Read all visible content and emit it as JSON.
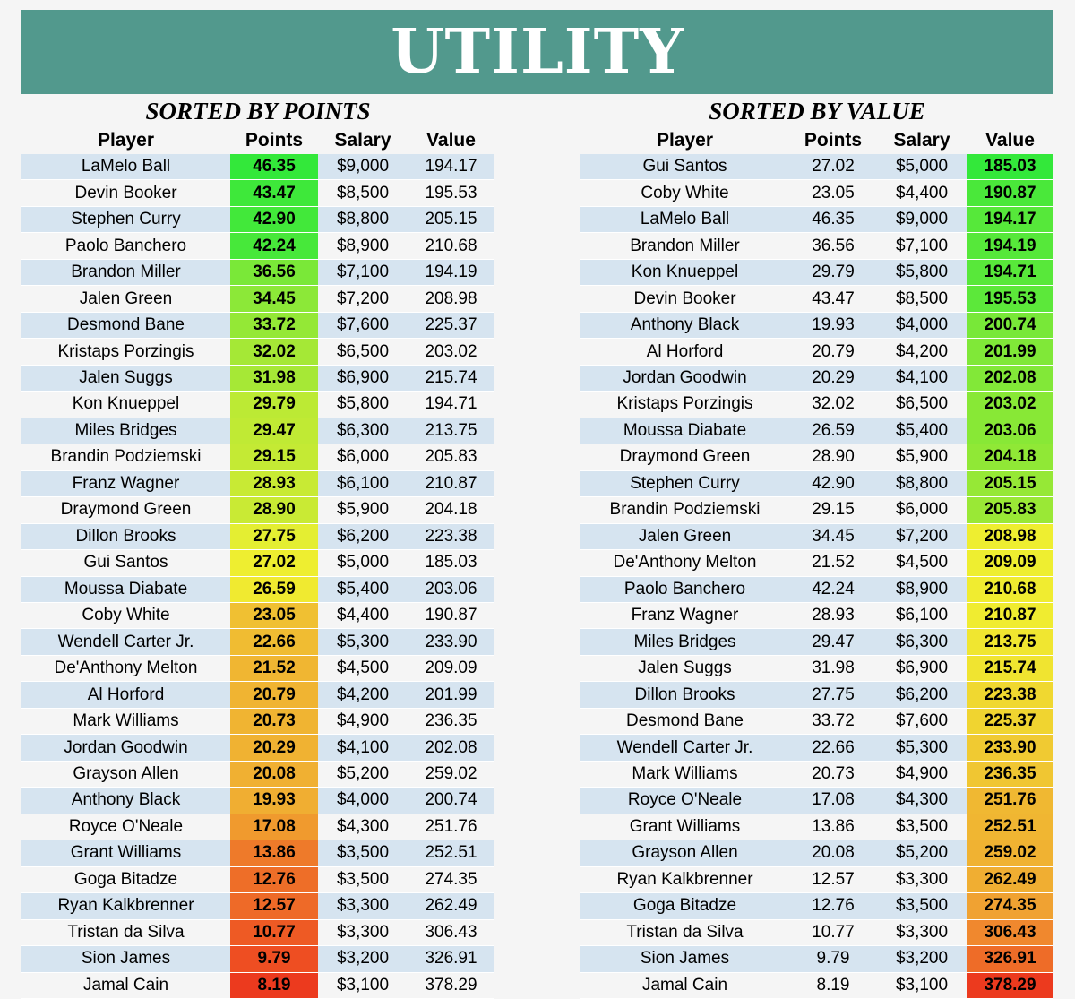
{
  "title": "UTILITY",
  "left": {
    "subtitle": "SORTED BY POINTS",
    "headers": [
      "Player",
      "Points",
      "Salary",
      "Value"
    ],
    "rows": [
      {
        "player": "LaMelo Ball",
        "points": "46.35",
        "salary": "$9,000",
        "value": "194.17",
        "heat": "#33e83a"
      },
      {
        "player": "Devin Booker",
        "points": "43.47",
        "salary": "$8,500",
        "value": "195.53",
        "heat": "#3ee83a"
      },
      {
        "player": "Stephen Curry",
        "points": "42.90",
        "salary": "$8,800",
        "value": "205.15",
        "heat": "#42e83a"
      },
      {
        "player": "Paolo Banchero",
        "points": "42.24",
        "salary": "$8,900",
        "value": "210.68",
        "heat": "#47e83a"
      },
      {
        "player": "Brandon Miller",
        "points": "36.56",
        "salary": "$7,100",
        "value": "194.19",
        "heat": "#7ae838"
      },
      {
        "player": "Jalen Green",
        "points": "34.45",
        "salary": "$7,200",
        "value": "208.98",
        "heat": "#8ce838"
      },
      {
        "player": "Desmond Bane",
        "points": "33.72",
        "salary": "$7,600",
        "value": "225.37",
        "heat": "#94e836"
      },
      {
        "player": "Kristaps Porzingis",
        "points": "32.02",
        "salary": "$6,500",
        "value": "203.02",
        "heat": "#a5e836"
      },
      {
        "player": "Jalen Suggs",
        "points": "31.98",
        "salary": "$6,900",
        "value": "215.74",
        "heat": "#a6e836"
      },
      {
        "player": "Kon Knueppel",
        "points": "29.79",
        "salary": "$5,800",
        "value": "194.71",
        "heat": "#bcea34"
      },
      {
        "player": "Miles Bridges",
        "points": "29.47",
        "salary": "$6,300",
        "value": "213.75",
        "heat": "#c0ea34"
      },
      {
        "player": "Brandin Podziemski",
        "points": "29.15",
        "salary": "$6,000",
        "value": "205.83",
        "heat": "#c4ea34"
      },
      {
        "player": "Franz Wagner",
        "points": "28.93",
        "salary": "$6,100",
        "value": "210.87",
        "heat": "#c8ea34"
      },
      {
        "player": "Draymond Green",
        "points": "28.90",
        "salary": "$5,900",
        "value": "204.18",
        "heat": "#c9ea34"
      },
      {
        "player": "Dillon Brooks",
        "points": "27.75",
        "salary": "$6,200",
        "value": "223.38",
        "heat": "#e4ee32"
      },
      {
        "player": "Gui Santos",
        "points": "27.02",
        "salary": "$5,000",
        "value": "185.03",
        "heat": "#eeee30"
      },
      {
        "player": "Moussa Diabate",
        "points": "26.59",
        "salary": "$5,400",
        "value": "203.06",
        "heat": "#f0ea30"
      },
      {
        "player": "Coby White",
        "points": "23.05",
        "salary": "$4,400",
        "value": "190.87",
        "heat": "#f0c032"
      },
      {
        "player": "Wendell Carter Jr.",
        "points": "22.66",
        "salary": "$5,300",
        "value": "233.90",
        "heat": "#f0bc32"
      },
      {
        "player": "De'Anthony Melton",
        "points": "21.52",
        "salary": "$4,500",
        "value": "209.09",
        "heat": "#f0b632"
      },
      {
        "player": "Al Horford",
        "points": "20.79",
        "salary": "$4,200",
        "value": "201.99",
        "heat": "#f0b432"
      },
      {
        "player": "Mark Williams",
        "points": "20.73",
        "salary": "$4,900",
        "value": "236.35",
        "heat": "#f0b432"
      },
      {
        "player": "Jordan Goodwin",
        "points": "20.29",
        "salary": "$4,100",
        "value": "202.08",
        "heat": "#f0b232"
      },
      {
        "player": "Grayson Allen",
        "points": "20.08",
        "salary": "$5,200",
        "value": "259.02",
        "heat": "#f0b032"
      },
      {
        "player": "Anthony Black",
        "points": "19.93",
        "salary": "$4,000",
        "value": "200.74",
        "heat": "#f0ae32"
      },
      {
        "player": "Royce O'Neale",
        "points": "17.08",
        "salary": "$4,300",
        "value": "251.76",
        "heat": "#f09a2e"
      },
      {
        "player": "Grant Williams",
        "points": "13.86",
        "salary": "$3,500",
        "value": "252.51",
        "heat": "#ee7a2a"
      },
      {
        "player": "Goga Bitadze",
        "points": "12.76",
        "salary": "$3,500",
        "value": "274.35",
        "heat": "#ee6e28"
      },
      {
        "player": "Ryan Kalkbrenner",
        "points": "12.57",
        "salary": "$3,300",
        "value": "262.49",
        "heat": "#ee6a28"
      },
      {
        "player": "Tristan da Silva",
        "points": "10.77",
        "salary": "$3,300",
        "value": "306.43",
        "heat": "#ee5a24"
      },
      {
        "player": "Sion James",
        "points": "9.79",
        "salary": "$3,200",
        "value": "326.91",
        "heat": "#ee4e22"
      },
      {
        "player": "Jamal Cain",
        "points": "8.19",
        "salary": "$3,100",
        "value": "378.29",
        "heat": "#ec3a1e"
      }
    ]
  },
  "right": {
    "subtitle": "SORTED BY VALUE",
    "headers": [
      "Player",
      "Points",
      "Salary",
      "Value"
    ],
    "rows": [
      {
        "player": "Gui Santos",
        "points": "27.02",
        "salary": "$5,000",
        "value": "185.03",
        "heat": "#33e83a"
      },
      {
        "player": "Coby White",
        "points": "23.05",
        "salary": "$4,400",
        "value": "190.87",
        "heat": "#4ae83a"
      },
      {
        "player": "LaMelo Ball",
        "points": "46.35",
        "salary": "$9,000",
        "value": "194.17",
        "heat": "#56e83a"
      },
      {
        "player": "Brandon Miller",
        "points": "36.56",
        "salary": "$7,100",
        "value": "194.19",
        "heat": "#56e83a"
      },
      {
        "player": "Kon Knueppel",
        "points": "29.79",
        "salary": "$5,800",
        "value": "194.71",
        "heat": "#58e83a"
      },
      {
        "player": "Devin Booker",
        "points": "43.47",
        "salary": "$8,500",
        "value": "195.53",
        "heat": "#5ce83a"
      },
      {
        "player": "Anthony Black",
        "points": "19.93",
        "salary": "$4,000",
        "value": "200.74",
        "heat": "#78e838"
      },
      {
        "player": "Al Horford",
        "points": "20.79",
        "salary": "$4,200",
        "value": "201.99",
        "heat": "#80e838"
      },
      {
        "player": "Jordan Goodwin",
        "points": "20.29",
        "salary": "$4,100",
        "value": "202.08",
        "heat": "#82e838"
      },
      {
        "player": "Kristaps Porzingis",
        "points": "32.02",
        "salary": "$6,500",
        "value": "203.02",
        "heat": "#88e836"
      },
      {
        "player": "Moussa Diabate",
        "points": "26.59",
        "salary": "$5,400",
        "value": "203.06",
        "heat": "#88e836"
      },
      {
        "player": "Draymond Green",
        "points": "28.90",
        "salary": "$5,900",
        "value": "204.18",
        "heat": "#90e836"
      },
      {
        "player": "Stephen Curry",
        "points": "42.90",
        "salary": "$8,800",
        "value": "205.15",
        "heat": "#96e836"
      },
      {
        "player": "Brandin Podziemski",
        "points": "29.15",
        "salary": "$6,000",
        "value": "205.83",
        "heat": "#9ae836"
      },
      {
        "player": "Jalen Green",
        "points": "34.45",
        "salary": "$7,200",
        "value": "208.98",
        "heat": "#eeee30"
      },
      {
        "player": "De'Anthony Melton",
        "points": "21.52",
        "salary": "$4,500",
        "value": "209.09",
        "heat": "#eeee30"
      },
      {
        "player": "Paolo Banchero",
        "points": "42.24",
        "salary": "$8,900",
        "value": "210.68",
        "heat": "#f0ec30"
      },
      {
        "player": "Franz Wagner",
        "points": "28.93",
        "salary": "$6,100",
        "value": "210.87",
        "heat": "#f0ec30"
      },
      {
        "player": "Miles Bridges",
        "points": "29.47",
        "salary": "$6,300",
        "value": "213.75",
        "heat": "#f0e630"
      },
      {
        "player": "Jalen Suggs",
        "points": "31.98",
        "salary": "$6,900",
        "value": "215.74",
        "heat": "#f0e430"
      },
      {
        "player": "Dillon Brooks",
        "points": "27.75",
        "salary": "$6,200",
        "value": "223.38",
        "heat": "#f0d830"
      },
      {
        "player": "Desmond Bane",
        "points": "33.72",
        "salary": "$7,600",
        "value": "225.37",
        "heat": "#f0d430"
      },
      {
        "player": "Wendell Carter Jr.",
        "points": "22.66",
        "salary": "$5,300",
        "value": "233.90",
        "heat": "#f0ca32"
      },
      {
        "player": "Mark Williams",
        "points": "20.73",
        "salary": "$4,900",
        "value": "236.35",
        "heat": "#f0c632"
      },
      {
        "player": "Royce O'Neale",
        "points": "17.08",
        "salary": "$4,300",
        "value": "251.76",
        "heat": "#f0b832"
      },
      {
        "player": "Grant Williams",
        "points": "13.86",
        "salary": "$3,500",
        "value": "252.51",
        "heat": "#f0b632"
      },
      {
        "player": "Grayson Allen",
        "points": "20.08",
        "salary": "$5,200",
        "value": "259.02",
        "heat": "#f0b232"
      },
      {
        "player": "Ryan Kalkbrenner",
        "points": "12.57",
        "salary": "$3,300",
        "value": "262.49",
        "heat": "#f0ae32"
      },
      {
        "player": "Goga Bitadze",
        "points": "12.76",
        "salary": "$3,500",
        "value": "274.35",
        "heat": "#f0a232"
      },
      {
        "player": "Tristan da Silva",
        "points": "10.77",
        "salary": "$3,300",
        "value": "306.43",
        "heat": "#f0882e"
      },
      {
        "player": "Sion James",
        "points": "9.79",
        "salary": "$3,200",
        "value": "326.91",
        "heat": "#ee6c28"
      },
      {
        "player": "Jamal Cain",
        "points": "8.19",
        "salary": "$3,100",
        "value": "378.29",
        "heat": "#ec3a1e"
      }
    ]
  }
}
